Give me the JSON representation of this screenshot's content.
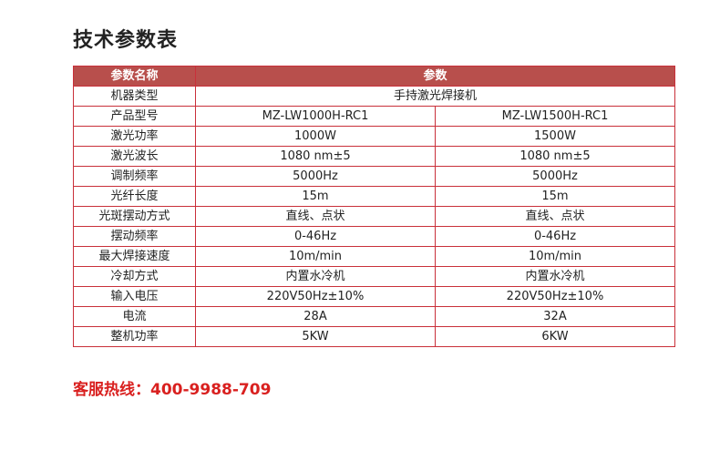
{
  "title": "技术参数表",
  "table": {
    "headers": [
      "参数名称",
      "参数"
    ],
    "machine_type": {
      "label": "机器类型",
      "value": "手持激光焊接机"
    },
    "rows": [
      [
        "产品型号",
        "MZ-LW1000H-RC1",
        "MZ-LW1500H-RC1"
      ],
      [
        "激光功率",
        "1000W",
        "1500W"
      ],
      [
        "激光波长",
        "1080 nm±5",
        "1080 nm±5"
      ],
      [
        "调制频率",
        "5000Hz",
        "5000Hz"
      ],
      [
        "光纤长度",
        "15m",
        "15m"
      ],
      [
        "光斑摆动方式",
        "直线、点状",
        "直线、点状"
      ],
      [
        "摆动频率",
        "0-46Hz",
        "0-46Hz"
      ],
      [
        "最大焊接速度",
        "10m/min",
        "10m/min"
      ],
      [
        "冷却方式",
        "内置水冷机",
        "内置水冷机"
      ],
      [
        "输入电压",
        "220V50Hz±10%",
        "220V50Hz±10%"
      ],
      [
        "电流",
        "28A",
        "32A"
      ],
      [
        "整机功率",
        "5KW",
        "6KW"
      ]
    ]
  },
  "hotline": "客服热线：400-9988-709",
  "colors": {
    "header_bg": "#b84f4c",
    "border": "#c9303a",
    "hotline": "#d9201f"
  }
}
